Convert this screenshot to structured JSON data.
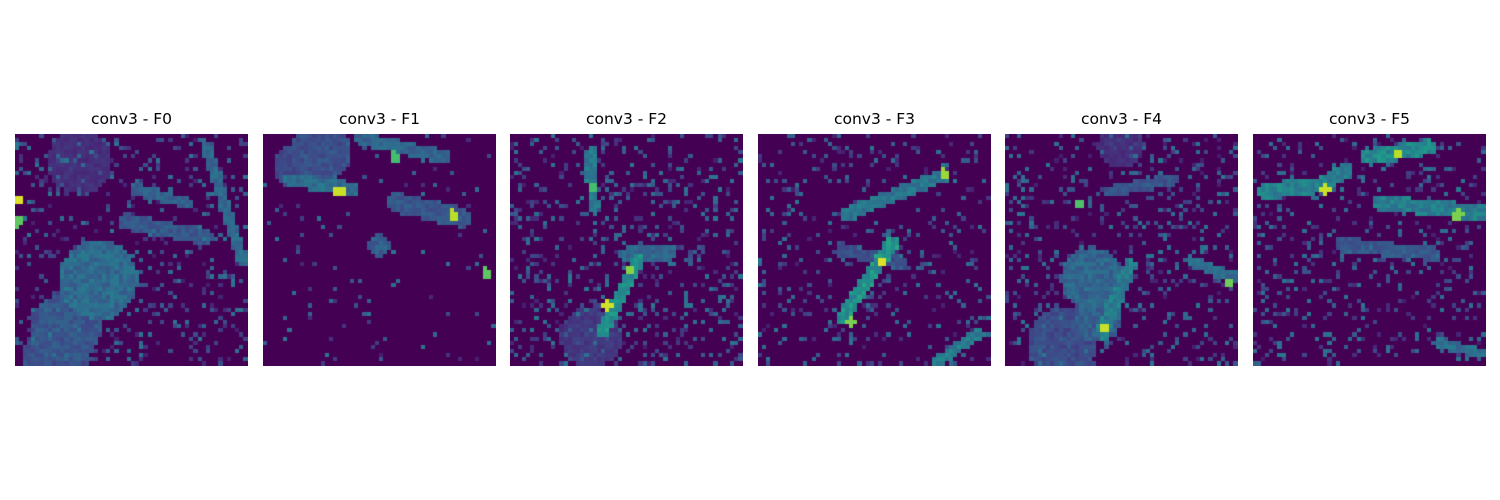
{
  "chart_data": [
    {
      "type": "heatmap",
      "title": "conv3 - F0",
      "colormap": "viridis",
      "axes_visible": false,
      "features": [
        {
          "kind": "noise",
          "density": 0.14
        },
        {
          "kind": "blob",
          "cx": 0.36,
          "cy": 0.63,
          "r": 0.17,
          "v": 0.42
        },
        {
          "kind": "blob",
          "cx": 0.22,
          "cy": 0.84,
          "r": 0.15,
          "v": 0.32
        },
        {
          "kind": "blob",
          "cx": 0.18,
          "cy": 0.95,
          "r": 0.14,
          "v": 0.28
        },
        {
          "kind": "blob",
          "cx": 0.28,
          "cy": 0.12,
          "r": 0.14,
          "v": 0.16
        },
        {
          "kind": "stroke",
          "x1": 0.48,
          "y1": 0.38,
          "x2": 0.82,
          "y2": 0.45,
          "w": 0.035,
          "v": 0.32
        },
        {
          "kind": "stroke",
          "x1": 0.52,
          "y1": 0.24,
          "x2": 0.74,
          "y2": 0.3,
          "w": 0.025,
          "v": 0.36
        },
        {
          "kind": "stroke",
          "x1": 0.82,
          "y1": 0.05,
          "x2": 0.98,
          "y2": 0.55,
          "w": 0.025,
          "v": 0.4
        },
        {
          "kind": "spot",
          "cx": 0.01,
          "cy": 0.29,
          "v": 0.95
        },
        {
          "kind": "spot",
          "cx": 0.01,
          "cy": 0.38,
          "v": 0.75
        }
      ]
    },
    {
      "type": "heatmap",
      "title": "conv3 - F1",
      "colormap": "viridis",
      "axes_visible": false,
      "features": [
        {
          "kind": "noise",
          "density": 0.03
        },
        {
          "kind": "blob",
          "cx": 0.25,
          "cy": 0.08,
          "r": 0.13,
          "v": 0.3
        },
        {
          "kind": "blob",
          "cx": 0.15,
          "cy": 0.14,
          "r": 0.1,
          "v": 0.26
        },
        {
          "kind": "stroke",
          "x1": 0.12,
          "y1": 0.2,
          "x2": 0.38,
          "y2": 0.24,
          "w": 0.03,
          "v": 0.42
        },
        {
          "kind": "stroke",
          "x1": 0.42,
          "y1": 0.02,
          "x2": 0.78,
          "y2": 0.1,
          "w": 0.03,
          "v": 0.38
        },
        {
          "kind": "stroke",
          "x1": 0.58,
          "y1": 0.3,
          "x2": 0.85,
          "y2": 0.36,
          "w": 0.045,
          "v": 0.32
        },
        {
          "kind": "blob",
          "cx": 0.5,
          "cy": 0.48,
          "r": 0.05,
          "v": 0.36
        },
        {
          "kind": "spot",
          "cx": 0.33,
          "cy": 0.25,
          "v": 0.92
        },
        {
          "kind": "spot",
          "cx": 0.82,
          "cy": 0.35,
          "v": 0.9
        },
        {
          "kind": "spot",
          "cx": 0.57,
          "cy": 0.1,
          "v": 0.7
        },
        {
          "kind": "spot",
          "cx": 0.96,
          "cy": 0.6,
          "v": 0.75
        }
      ]
    },
    {
      "type": "heatmap",
      "title": "conv3 - F2",
      "colormap": "viridis",
      "axes_visible": false,
      "features": [
        {
          "kind": "noise",
          "density": 0.18
        },
        {
          "kind": "stroke",
          "x1": 0.4,
          "y1": 0.85,
          "x2": 0.55,
          "y2": 0.55,
          "w": 0.03,
          "v": 0.58
        },
        {
          "kind": "stroke",
          "x1": 0.35,
          "y1": 0.08,
          "x2": 0.36,
          "y2": 0.32,
          "w": 0.025,
          "v": 0.48
        },
        {
          "kind": "stroke",
          "x1": 0.5,
          "y1": 0.52,
          "x2": 0.68,
          "y2": 0.52,
          "w": 0.03,
          "v": 0.4
        },
        {
          "kind": "blob",
          "cx": 0.35,
          "cy": 0.88,
          "r": 0.13,
          "v": 0.2
        },
        {
          "kind": "spot",
          "cx": 0.42,
          "cy": 0.74,
          "v": 0.93
        },
        {
          "kind": "spot",
          "cx": 0.52,
          "cy": 0.59,
          "v": 0.82
        },
        {
          "kind": "spot",
          "cx": 0.36,
          "cy": 0.23,
          "v": 0.7
        }
      ]
    },
    {
      "type": "heatmap",
      "title": "conv3 - F3",
      "colormap": "viridis",
      "axes_visible": false,
      "features": [
        {
          "kind": "noise",
          "density": 0.12
        },
        {
          "kind": "stroke",
          "x1": 0.36,
          "y1": 0.8,
          "x2": 0.58,
          "y2": 0.47,
          "w": 0.03,
          "v": 0.6
        },
        {
          "kind": "stroke",
          "x1": 0.38,
          "y1": 0.35,
          "x2": 0.8,
          "y2": 0.18,
          "w": 0.03,
          "v": 0.46
        },
        {
          "kind": "stroke",
          "x1": 0.36,
          "y1": 0.5,
          "x2": 0.62,
          "y2": 0.56,
          "w": 0.03,
          "v": 0.28
        },
        {
          "kind": "stroke",
          "x1": 0.78,
          "y1": 0.98,
          "x2": 0.95,
          "y2": 0.86,
          "w": 0.025,
          "v": 0.5
        },
        {
          "kind": "spot",
          "cx": 0.54,
          "cy": 0.55,
          "v": 0.95
        },
        {
          "kind": "spot",
          "cx": 0.8,
          "cy": 0.17,
          "v": 0.85
        },
        {
          "kind": "spot",
          "cx": 0.4,
          "cy": 0.81,
          "v": 0.8
        }
      ]
    },
    {
      "type": "heatmap",
      "title": "conv3 - F4",
      "colormap": "viridis",
      "axes_visible": false,
      "features": [
        {
          "kind": "noise",
          "density": 0.16
        },
        {
          "kind": "blob",
          "cx": 0.37,
          "cy": 0.62,
          "r": 0.13,
          "v": 0.4
        },
        {
          "kind": "blob",
          "cx": 0.4,
          "cy": 0.8,
          "r": 0.1,
          "v": 0.36
        },
        {
          "kind": "blob",
          "cx": 0.25,
          "cy": 0.9,
          "r": 0.15,
          "v": 0.28
        },
        {
          "kind": "blob",
          "cx": 0.5,
          "cy": 0.05,
          "r": 0.1,
          "v": 0.16
        },
        {
          "kind": "stroke",
          "x1": 0.42,
          "y1": 0.86,
          "x2": 0.54,
          "y2": 0.57,
          "w": 0.03,
          "v": 0.5
        },
        {
          "kind": "stroke",
          "x1": 0.45,
          "y1": 0.25,
          "x2": 0.72,
          "y2": 0.2,
          "w": 0.025,
          "v": 0.3
        },
        {
          "kind": "stroke",
          "x1": 0.8,
          "y1": 0.55,
          "x2": 0.98,
          "y2": 0.62,
          "w": 0.025,
          "v": 0.42
        },
        {
          "kind": "spot",
          "cx": 0.43,
          "cy": 0.84,
          "v": 0.92
        },
        {
          "kind": "spot",
          "cx": 0.32,
          "cy": 0.3,
          "v": 0.72
        },
        {
          "kind": "spot",
          "cx": 0.96,
          "cy": 0.64,
          "v": 0.78
        }
      ]
    },
    {
      "type": "heatmap",
      "title": "conv3 - F5",
      "colormap": "viridis",
      "axes_visible": false,
      "features": [
        {
          "kind": "noise",
          "density": 0.14
        },
        {
          "kind": "stroke",
          "x1": 0.05,
          "y1": 0.25,
          "x2": 0.3,
          "y2": 0.22,
          "w": 0.035,
          "v": 0.52
        },
        {
          "kind": "stroke",
          "x1": 0.3,
          "y1": 0.22,
          "x2": 0.4,
          "y2": 0.16,
          "w": 0.035,
          "v": 0.5
        },
        {
          "kind": "stroke",
          "x1": 0.5,
          "y1": 0.1,
          "x2": 0.75,
          "y2": 0.06,
          "w": 0.035,
          "v": 0.55
        },
        {
          "kind": "stroke",
          "x1": 0.55,
          "y1": 0.3,
          "x2": 0.98,
          "y2": 0.34,
          "w": 0.035,
          "v": 0.5
        },
        {
          "kind": "stroke",
          "x1": 0.38,
          "y1": 0.48,
          "x2": 0.78,
          "y2": 0.52,
          "w": 0.03,
          "v": 0.32
        },
        {
          "kind": "stroke",
          "x1": 0.8,
          "y1": 0.9,
          "x2": 0.98,
          "y2": 0.95,
          "w": 0.025,
          "v": 0.42
        },
        {
          "kind": "spot",
          "cx": 0.31,
          "cy": 0.24,
          "v": 0.92
        },
        {
          "kind": "spot",
          "cx": 0.62,
          "cy": 0.09,
          "v": 0.9
        },
        {
          "kind": "spot",
          "cx": 0.88,
          "cy": 0.35,
          "v": 0.8
        }
      ]
    }
  ]
}
